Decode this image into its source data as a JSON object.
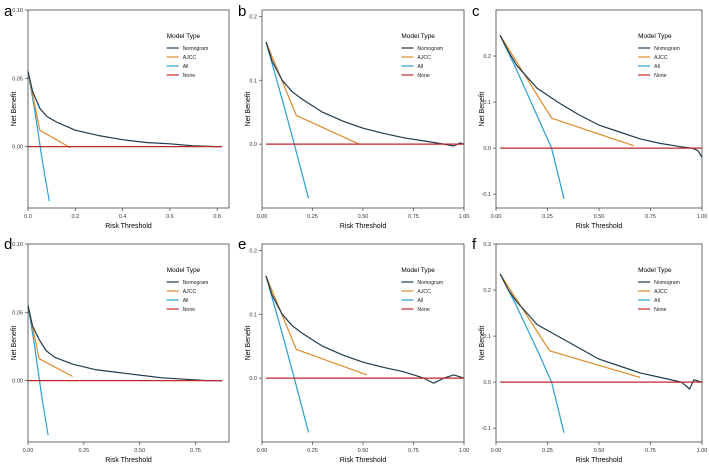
{
  "colors": {
    "nomogram": "#1f3b4d",
    "ajcc": "#e08a2c",
    "all": "#2a9fd0",
    "none": "#c0272d",
    "axis": "#444444"
  },
  "chart_data": [
    {
      "panel": "a",
      "type": "line",
      "xlabel": "Risk Threshold",
      "ylabel": "Net Benefit",
      "xlim": [
        0,
        0.85
      ],
      "ylim": [
        -0.045,
        0.1
      ],
      "xticks": [
        0,
        0.2,
        0.4,
        0.6,
        0.8
      ],
      "xtick_labels": [
        "0.0",
        "0.2",
        "0.4",
        "0.6",
        "0.8"
      ],
      "yticks": [
        0,
        0.05,
        0.1
      ],
      "ytick_labels": [
        "0.00",
        "0.05",
        "0.10"
      ],
      "legend_title": "Model Type",
      "legend_position": "right",
      "series": [
        {
          "name": "Nomogram",
          "x": [
            0,
            0.02,
            0.05,
            0.08,
            0.12,
            0.2,
            0.3,
            0.4,
            0.5,
            0.6,
            0.7,
            0.8,
            0.82
          ],
          "y": [
            0.055,
            0.04,
            0.028,
            0.022,
            0.018,
            0.012,
            0.008,
            0.005,
            0.003,
            0.002,
            0.0005,
            0.0,
            0.0
          ]
        },
        {
          "name": "AJCC",
          "x": [
            0,
            0.05,
            0.18
          ],
          "y": [
            0.055,
            0.012,
            -0.001
          ]
        },
        {
          "name": "All",
          "x": [
            0,
            0.03,
            0.06,
            0.09
          ],
          "y": [
            0.055,
            0.025,
            -0.01,
            -0.04
          ]
        },
        {
          "name": "None",
          "x": [
            0,
            0.82
          ],
          "y": [
            0,
            0
          ]
        }
      ]
    },
    {
      "panel": "b",
      "type": "line",
      "xlabel": "Risk Threshold",
      "ylabel": "Net Benefit",
      "xlim": [
        0,
        1
      ],
      "ylim": [
        -0.1,
        0.21
      ],
      "xticks": [
        0,
        0.25,
        0.5,
        0.75,
        1.0
      ],
      "xtick_labels": [
        "0.00",
        "0.25",
        "0.50",
        "0.75",
        "1.00"
      ],
      "yticks": [
        0,
        0.1,
        0.2
      ],
      "ytick_labels": [
        "0.0",
        "0.1",
        "0.2"
      ],
      "legend_title": "Model Type",
      "legend_position": "right",
      "series": [
        {
          "name": "Nomogram",
          "x": [
            0.02,
            0.05,
            0.1,
            0.15,
            0.2,
            0.3,
            0.4,
            0.5,
            0.6,
            0.7,
            0.8,
            0.9,
            0.95,
            0.98,
            1.0
          ],
          "y": [
            0.16,
            0.13,
            0.1,
            0.082,
            0.07,
            0.05,
            0.036,
            0.025,
            0.017,
            0.01,
            0.005,
            0.0,
            -0.003,
            0.002,
            0.0
          ]
        },
        {
          "name": "AJCC",
          "x": [
            0.02,
            0.17,
            0.48
          ],
          "y": [
            0.16,
            0.045,
            0.0
          ]
        },
        {
          "name": "All",
          "x": [
            0.02,
            0.1,
            0.16,
            0.23
          ],
          "y": [
            0.16,
            0.07,
            0.0,
            -0.085
          ]
        },
        {
          "name": "None",
          "x": [
            0.02,
            1.0
          ],
          "y": [
            0,
            0
          ]
        }
      ]
    },
    {
      "panel": "c",
      "type": "line",
      "xlabel": "Risk Threshold",
      "ylabel": "Net Benefit",
      "xlim": [
        0,
        1
      ],
      "ylim": [
        -0.13,
        0.3
      ],
      "xticks": [
        0,
        0.25,
        0.5,
        0.75,
        1.0
      ],
      "xtick_labels": [
        "0.00",
        "0.25",
        "0.50",
        "0.75",
        "1.00"
      ],
      "yticks": [
        -0.1,
        0,
        0.1,
        0.2
      ],
      "ytick_labels": [
        "-0.1",
        "0.0",
        "0.1",
        "0.2"
      ],
      "legend_title": "Model Type",
      "legend_position": "right",
      "series": [
        {
          "name": "Nomogram",
          "x": [
            0.02,
            0.06,
            0.1,
            0.15,
            0.2,
            0.3,
            0.4,
            0.5,
            0.6,
            0.7,
            0.8,
            0.9,
            0.95,
            0.98,
            1.0
          ],
          "y": [
            0.245,
            0.21,
            0.18,
            0.155,
            0.13,
            0.1,
            0.073,
            0.05,
            0.035,
            0.02,
            0.01,
            0.003,
            0.0,
            -0.005,
            -0.02
          ]
        },
        {
          "name": "AJCC",
          "x": [
            0.02,
            0.27,
            0.67
          ],
          "y": [
            0.245,
            0.065,
            0.005
          ]
        },
        {
          "name": "All",
          "x": [
            0.02,
            0.1,
            0.2,
            0.27,
            0.33
          ],
          "y": [
            0.245,
            0.17,
            0.07,
            0.0,
            -0.11
          ]
        },
        {
          "name": "None",
          "x": [
            0.02,
            1.0
          ],
          "y": [
            0,
            0
          ]
        }
      ]
    },
    {
      "panel": "d",
      "type": "line",
      "xlabel": "Risk Threshold",
      "ylabel": "Net Benefit",
      "xlim": [
        0,
        0.9
      ],
      "ylim": [
        -0.045,
        0.1
      ],
      "xticks": [
        0,
        0.25,
        0.5,
        0.75
      ],
      "xtick_labels": [
        "0.00",
        "0.25",
        "0.50",
        "0.75"
      ],
      "yticks": [
        0,
        0.05,
        0.1
      ],
      "ytick_labels": [
        "0.00",
        "0.05",
        "0.10"
      ],
      "legend_title": "Model Type",
      "legend_position": "right",
      "series": [
        {
          "name": "Nomogram",
          "x": [
            0,
            0.02,
            0.05,
            0.08,
            0.12,
            0.2,
            0.3,
            0.4,
            0.5,
            0.6,
            0.7,
            0.8,
            0.87
          ],
          "y": [
            0.055,
            0.04,
            0.03,
            0.022,
            0.017,
            0.012,
            0.008,
            0.006,
            0.004,
            0.002,
            0.001,
            0.0,
            0.0
          ]
        },
        {
          "name": "AJCC",
          "x": [
            0,
            0.05,
            0.2
          ],
          "y": [
            0.055,
            0.016,
            0.003
          ]
        },
        {
          "name": "All",
          "x": [
            0,
            0.03,
            0.06,
            0.09
          ],
          "y": [
            0.055,
            0.025,
            -0.01,
            -0.04
          ]
        },
        {
          "name": "None",
          "x": [
            0,
            0.87
          ],
          "y": [
            0,
            0
          ]
        }
      ]
    },
    {
      "panel": "e",
      "type": "line",
      "xlabel": "Risk Threshold",
      "ylabel": "Net Benefit",
      "xlim": [
        0,
        1
      ],
      "ylim": [
        -0.1,
        0.21
      ],
      "xticks": [
        0,
        0.25,
        0.5,
        0.75,
        1.0
      ],
      "xtick_labels": [
        "0.00",
        "0.25",
        "0.50",
        "0.75",
        "1.00"
      ],
      "yticks": [
        0,
        0.1,
        0.2
      ],
      "ytick_labels": [
        "0.0",
        "0.1",
        "0.2"
      ],
      "legend_title": "Model Type",
      "legend_position": "right",
      "series": [
        {
          "name": "Nomogram",
          "x": [
            0.02,
            0.05,
            0.1,
            0.15,
            0.2,
            0.3,
            0.4,
            0.5,
            0.6,
            0.7,
            0.8,
            0.85,
            0.9,
            0.95,
            1.0
          ],
          "y": [
            0.16,
            0.13,
            0.1,
            0.082,
            0.07,
            0.05,
            0.036,
            0.025,
            0.017,
            0.01,
            0.0,
            -0.008,
            0.0,
            0.005,
            0.0
          ]
        },
        {
          "name": "AJCC",
          "x": [
            0.02,
            0.17,
            0.52
          ],
          "y": [
            0.16,
            0.045,
            0.005
          ]
        },
        {
          "name": "All",
          "x": [
            0.02,
            0.1,
            0.16,
            0.23
          ],
          "y": [
            0.16,
            0.07,
            0.0,
            -0.085
          ]
        },
        {
          "name": "None",
          "x": [
            0.02,
            1.0
          ],
          "y": [
            0,
            0
          ]
        }
      ]
    },
    {
      "panel": "f",
      "type": "line",
      "xlabel": "Risk Threshold",
      "ylabel": "Net Benefit",
      "xlim": [
        0,
        1
      ],
      "ylim": [
        -0.13,
        0.3
      ],
      "xticks": [
        0,
        0.25,
        0.5,
        0.75,
        1.0
      ],
      "xtick_labels": [
        "0.00",
        "0.25",
        "0.50",
        "0.75",
        "1.00"
      ],
      "yticks": [
        -0.1,
        0,
        0.1,
        0.2,
        0.3
      ],
      "ytick_labels": [
        "-0.1",
        "0.0",
        "0.1",
        "0.2",
        "0.3"
      ],
      "legend_title": "Model Type",
      "legend_position": "right",
      "series": [
        {
          "name": "Nomogram",
          "x": [
            0.02,
            0.06,
            0.1,
            0.15,
            0.2,
            0.3,
            0.4,
            0.5,
            0.6,
            0.7,
            0.8,
            0.9,
            0.94,
            0.96,
            1.0
          ],
          "y": [
            0.235,
            0.2,
            0.175,
            0.15,
            0.125,
            0.1,
            0.075,
            0.05,
            0.035,
            0.02,
            0.01,
            0.0,
            -0.015,
            0.005,
            0.0
          ]
        },
        {
          "name": "AJCC",
          "x": [
            0.02,
            0.26,
            0.7
          ],
          "y": [
            0.235,
            0.068,
            0.01
          ]
        },
        {
          "name": "All",
          "x": [
            0.02,
            0.1,
            0.2,
            0.27,
            0.33
          ],
          "y": [
            0.235,
            0.165,
            0.07,
            0.0,
            -0.11
          ]
        },
        {
          "name": "None",
          "x": [
            0.02,
            1.0
          ],
          "y": [
            0,
            0
          ]
        }
      ]
    }
  ]
}
